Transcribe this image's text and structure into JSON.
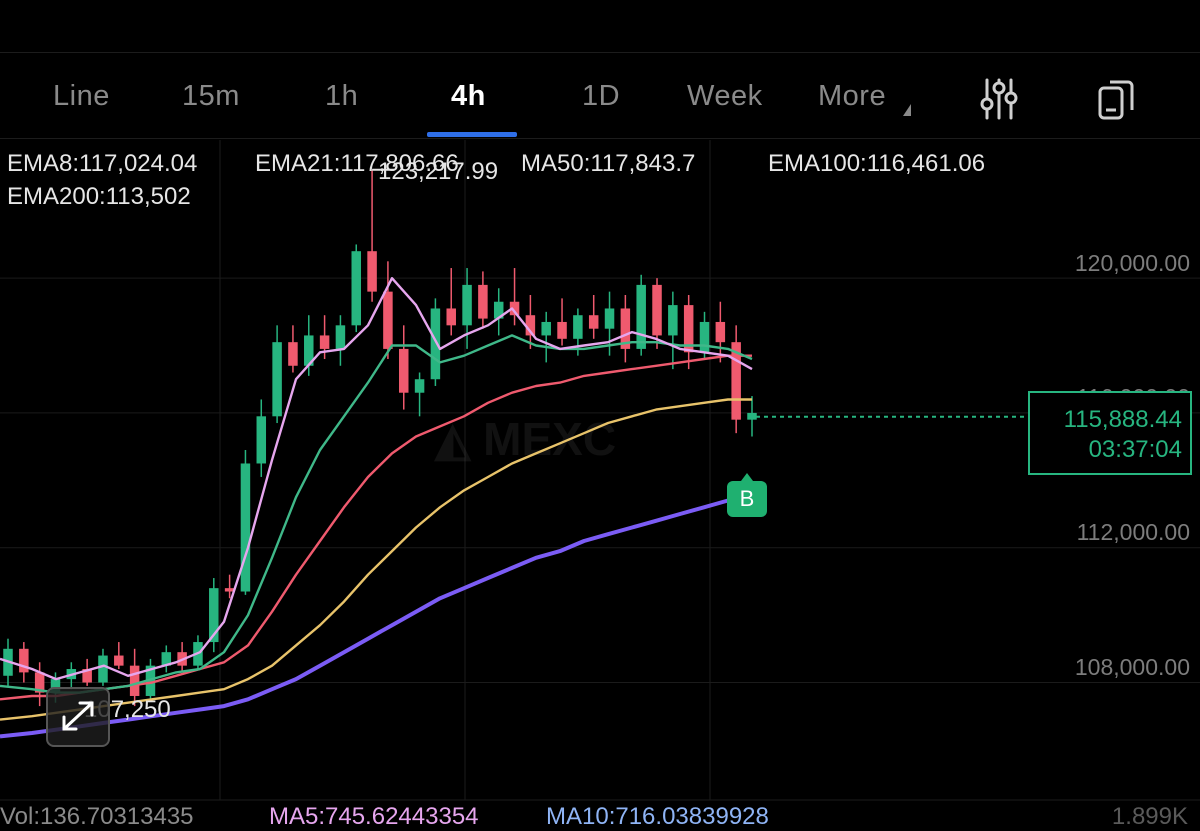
{
  "tabs": [
    "Line",
    "15m",
    "1h",
    "4h",
    "1D",
    "Week",
    "More"
  ],
  "active_tab": "4h",
  "legend": {
    "ema8": "EMA8:117,024.04",
    "ema21": "EMA21:117,806.66",
    "ma50": "MA50:117,843.7",
    "ema100": "EMA100:116,461.06",
    "ema200": "EMA200:113,502"
  },
  "colors": {
    "ema8": "#e6a6ee",
    "ema21": "#3fb889",
    "ma50": "#ef5a6e",
    "ema100": "#e8c36a",
    "ema200": "#7b5cf5",
    "up": "#27b580",
    "down": "#ef5a6e"
  },
  "price_axis": [
    "120,000.00",
    "116,000.00",
    "112,000.00",
    "108,000.00"
  ],
  "current": {
    "price": "115,888.44",
    "countdown": "03:37:04"
  },
  "high_label": "123,217.99",
  "low_label": "107,250",
  "marker": "B",
  "volume": {
    "vol": "Vol:136.70313435",
    "ma5": "MA5:745.62443354",
    "ma10": "MA10:716.03839928",
    "axis_max": "1.899K"
  },
  "icons": {
    "settings": "sliders-icon",
    "copy": "copy-icon",
    "expand": "expand-icon"
  },
  "chart_data": {
    "type": "line",
    "title": "",
    "ylim": [
      105700,
      124100
    ],
    "y_ticks": [
      108000,
      112000,
      116000,
      120000
    ],
    "current_price": 115888.44,
    "high": 123217.99,
    "low": 107250,
    "series": [
      {
        "name": "EMA8",
        "values": [
          108700,
          108400,
          108100,
          108300,
          108500,
          108200,
          108400,
          108600,
          108900,
          109800,
          112000,
          114600,
          117000,
          117800,
          117900,
          118600,
          120000,
          119200,
          117900,
          118300,
          118600,
          119100,
          118200,
          117900,
          118000,
          118100,
          118400,
          118200,
          117900,
          117800,
          117700,
          117300
        ]
      },
      {
        "name": "EMA21",
        "values": [
          107900,
          107800,
          107700,
          107700,
          107800,
          107900,
          108100,
          108300,
          108400,
          108900,
          110000,
          111700,
          113500,
          114900,
          115900,
          116900,
          118000,
          118000,
          117500,
          117700,
          118000,
          118300,
          118000,
          117900,
          117900,
          118000,
          118100,
          118100,
          118000,
          118000,
          117900,
          117600
        ]
      },
      {
        "name": "MA50",
        "values": [
          107500,
          107600,
          107600,
          107700,
          107800,
          107900,
          108000,
          108200,
          108400,
          108600,
          109100,
          110100,
          111200,
          112200,
          113200,
          114100,
          114800,
          115300,
          115600,
          115900,
          116300,
          116600,
          116800,
          116900,
          117100,
          117200,
          117300,
          117400,
          117500,
          117600,
          117700,
          117700
        ]
      },
      {
        "name": "EMA100",
        "values": [
          106900,
          107000,
          107100,
          107200,
          107300,
          107400,
          107500,
          107600,
          107700,
          107800,
          108100,
          108500,
          109100,
          109700,
          110400,
          111200,
          111900,
          112600,
          113200,
          113700,
          114100,
          114500,
          114800,
          115100,
          115400,
          115700,
          115900,
          116100,
          116200,
          116300,
          116400,
          116400
        ]
      },
      {
        "name": "EMA200",
        "values": [
          106400,
          106500,
          106600,
          106700,
          106800,
          106900,
          107000,
          107100,
          107200,
          107300,
          107500,
          107800,
          108100,
          108500,
          108900,
          109300,
          109700,
          110100,
          110500,
          110800,
          111100,
          111400,
          111700,
          111900,
          112200,
          112400,
          112600,
          112800,
          113000,
          113200,
          113400,
          113500
        ]
      }
    ],
    "candles": [
      [
        108200,
        109300,
        107900,
        109000
      ],
      [
        109000,
        109200,
        108000,
        108300
      ],
      [
        108300,
        108600,
        107300,
        107700
      ],
      [
        107700,
        108300,
        107400,
        108100
      ],
      [
        108100,
        108600,
        107800,
        108400
      ],
      [
        108400,
        108700,
        107900,
        108000
      ],
      [
        108000,
        109000,
        107900,
        108800
      ],
      [
        108800,
        109200,
        108400,
        108500
      ],
      [
        108500,
        109000,
        107300,
        107600
      ],
      [
        107600,
        108700,
        107500,
        108500
      ],
      [
        108500,
        109100,
        108300,
        108900
      ],
      [
        108900,
        109200,
        108300,
        108500
      ],
      [
        108500,
        109400,
        108400,
        109200
      ],
      [
        109200,
        111100,
        108900,
        110800
      ],
      [
        110800,
        111200,
        110500,
        110700
      ],
      [
        110700,
        114900,
        110600,
        114500
      ],
      [
        114500,
        116400,
        114100,
        115900
      ],
      [
        115900,
        118600,
        115700,
        118100
      ],
      [
        118100,
        118600,
        117200,
        117400
      ],
      [
        117400,
        118900,
        117100,
        118300
      ],
      [
        118300,
        118900,
        117600,
        117900
      ],
      [
        117900,
        118900,
        117400,
        118600
      ],
      [
        118600,
        121000,
        118400,
        120800
      ],
      [
        120800,
        123200,
        119300,
        119600
      ],
      [
        119600,
        120500,
        117600,
        117900
      ],
      [
        117900,
        118600,
        116100,
        116600
      ],
      [
        116600,
        117200,
        115900,
        117000
      ],
      [
        117000,
        119400,
        116800,
        119100
      ],
      [
        119100,
        120300,
        118300,
        118600
      ],
      [
        118600,
        120300,
        117900,
        119800
      ],
      [
        119800,
        120200,
        118500,
        118800
      ],
      [
        118800,
        119700,
        118300,
        119300
      ],
      [
        119300,
        120300,
        118600,
        118900
      ],
      [
        118900,
        119500,
        117900,
        118300
      ],
      [
        118300,
        119000,
        117500,
        118700
      ],
      [
        118700,
        119400,
        118000,
        118200
      ],
      [
        118200,
        119100,
        117700,
        118900
      ],
      [
        118900,
        119500,
        118200,
        118500
      ],
      [
        118500,
        119600,
        117700,
        119100
      ],
      [
        119100,
        119500,
        117500,
        117900
      ],
      [
        117900,
        120100,
        117700,
        119800
      ],
      [
        119800,
        120000,
        117900,
        118300
      ],
      [
        118300,
        119600,
        117300,
        119200
      ],
      [
        119200,
        119500,
        117300,
        117800
      ],
      [
        117800,
        119000,
        117600,
        118700
      ],
      [
        118700,
        119300,
        117500,
        118100
      ],
      [
        118100,
        118600,
        115400,
        115800
      ],
      [
        115800,
        116500,
        115300,
        116000
      ]
    ]
  }
}
